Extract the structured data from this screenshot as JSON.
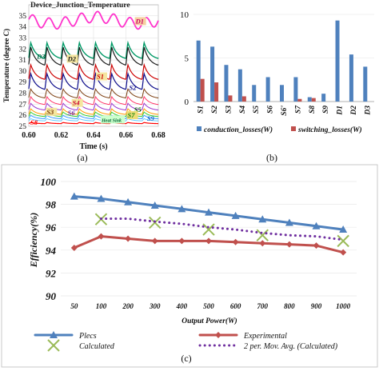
{
  "chart_data": [
    {
      "panel": "a",
      "type": "line",
      "title": "Device_Junction_Temperature",
      "xlabel": "Time (s)",
      "ylabel": "Temperature (degree C)",
      "xlim": [
        0.6,
        0.68
      ],
      "ylim": [
        25,
        36
      ],
      "x_ticks": [
        "0.60",
        "0.62",
        "0.64",
        "0.66",
        "0.68"
      ],
      "y_ticks": [
        "25",
        "26",
        "27",
        "28",
        "29",
        "30",
        "31",
        "32",
        "33",
        "34",
        "35"
      ],
      "caption": "(a)",
      "series": [
        {
          "name": "D1",
          "color": "#ff33cc",
          "base": 34.6,
          "amp": 0.9,
          "width": 1.8
        },
        {
          "name": "D3",
          "color": "#009966",
          "base": 31.2,
          "amp": 1.4,
          "width": 1.4
        },
        {
          "name": "D2",
          "color": "#1a1a1a",
          "base": 30.6,
          "amp": 1.6,
          "width": 1.2
        },
        {
          "name": "S1",
          "color": "#cc0000",
          "base": 29.3,
          "amp": 1.3,
          "width": 1.2
        },
        {
          "name": "S2",
          "color": "#0a0a8a",
          "base": 28.4,
          "amp": 1.4,
          "width": 1.2
        },
        {
          "name": "S3",
          "color": "#7a3b0c",
          "base": 27.6,
          "amp": 0.8,
          "width": 1.0
        },
        {
          "name": "S4",
          "color": "#ff3366",
          "base": 27.0,
          "amp": 0.7,
          "width": 1.0
        },
        {
          "name": "S6",
          "color": "#9933cc",
          "base": 26.5,
          "amp": 0.6,
          "width": 1.0
        },
        {
          "name": "S5",
          "color": "#ff9900",
          "base": 26.1,
          "amp": 0.5,
          "width": 1.0
        },
        {
          "name": "S7",
          "color": "#33cc33",
          "base": 25.9,
          "amp": 0.4,
          "width": 1.0
        },
        {
          "name": "S9",
          "color": "#3399ff",
          "base": 25.7,
          "amp": 0.3,
          "width": 1.0
        },
        {
          "name": "Heat Sink",
          "color": "#66ccff",
          "base": 25.5,
          "amp": 0.2,
          "width": 1.0
        },
        {
          "name": "S8",
          "color": "#ff0000",
          "base": 25.25,
          "amp": 0.1,
          "width": 1.2
        }
      ],
      "labels": [
        {
          "text": "D1",
          "x": 0.666,
          "y": 34.3,
          "bg": "#f5d0a0",
          "color": "#cc0066"
        },
        {
          "text": "D3",
          "x": 0.605,
          "y": 31.1,
          "bg": "",
          "color": "#006644"
        },
        {
          "text": "D2",
          "x": 0.624,
          "y": 30.9,
          "bg": "#f5e6a0",
          "color": "#1a1a1a"
        },
        {
          "text": "S1",
          "x": 0.642,
          "y": 29.3,
          "bg": "#f5e6a0",
          "color": "#cc0000"
        },
        {
          "text": "S2",
          "x": 0.662,
          "y": 28.3,
          "bg": "",
          "color": "#0a0a8a"
        },
        {
          "text": "S4",
          "x": 0.627,
          "y": 26.9,
          "bg": "#f5e6a0",
          "color": "#cc0033"
        },
        {
          "text": "S3",
          "x": 0.611,
          "y": 26.1,
          "bg": "#f5e6a0",
          "color": "#7a3b0c"
        },
        {
          "text": "S6",
          "x": 0.624,
          "y": 26.0,
          "bg": "",
          "color": "#6622aa"
        },
        {
          "text": "S5",
          "x": 0.665,
          "y": 26.3,
          "bg": "",
          "color": "#006600"
        },
        {
          "text": "S7",
          "x": 0.661,
          "y": 25.8,
          "bg": "#eedd77",
          "color": "#118811"
        },
        {
          "text": "S9",
          "x": 0.673,
          "y": 25.5,
          "bg": "",
          "color": "#1166cc"
        },
        {
          "text": "Heat Sink",
          "x": 0.645,
          "y": 25.4,
          "bg": "#ccffcc",
          "color": "#006633"
        },
        {
          "text": "S8",
          "x": 0.601,
          "y": 25.15,
          "bg": "",
          "color": "#ff0000"
        }
      ]
    },
    {
      "panel": "b",
      "type": "bar",
      "categories": [
        "S1",
        "S2",
        "S3",
        "S4",
        "S5",
        "S6",
        "S6'",
        "S7",
        "S8",
        "S9",
        "D1",
        "D2",
        "D3"
      ],
      "ylim": [
        0,
        10
      ],
      "y_ticks": [
        "0",
        "5",
        "10"
      ],
      "caption": "(b)",
      "series": [
        {
          "name": "conduction_losses(W)",
          "color": "#4f81bd",
          "values": [
            7.0,
            6.3,
            4.2,
            3.7,
            1.9,
            2.8,
            1.9,
            2.8,
            0.5,
            0.9,
            9.3,
            5.4,
            4.0
          ]
        },
        {
          "name": "switching_losses(W)",
          "color": "#c0504d",
          "values": [
            2.6,
            2.2,
            0.7,
            0.6,
            0,
            0,
            0,
            0.3,
            0.4,
            0,
            0,
            0,
            0
          ]
        }
      ]
    },
    {
      "panel": "c",
      "type": "line",
      "xlabel": "Output Power(W)",
      "ylabel": "Efficiency(%)",
      "categories": [
        "50",
        "100",
        "200",
        "300",
        "400",
        "500",
        "600",
        "700",
        "800",
        "900",
        "1000"
      ],
      "ylim": [
        90,
        100
      ],
      "y_ticks": [
        "90",
        "92",
        "94",
        "96",
        "98",
        "100"
      ],
      "caption": "(c)",
      "series": [
        {
          "name": "Plecs",
          "color": "#4f81bd",
          "marker": "triangle",
          "values": [
            98.7,
            98.5,
            98.2,
            97.9,
            97.6,
            97.3,
            97.0,
            96.7,
            96.4,
            96.1,
            95.8
          ]
        },
        {
          "name": "Experimental",
          "color": "#c0504d",
          "marker": "diamond",
          "values": [
            94.2,
            95.2,
            95.0,
            94.8,
            94.8,
            94.8,
            94.7,
            94.6,
            94.5,
            94.4,
            93.8
          ]
        },
        {
          "name": "Calculated",
          "color": "#9bbb59",
          "marker": "x",
          "values": [
            null,
            96.7,
            null,
            96.4,
            null,
            95.8,
            null,
            95.3,
            null,
            null,
            94.8
          ]
        },
        {
          "name": "2 per. Mov. Avg. (Calculated)",
          "color": "#7030a0",
          "style": "dotted",
          "values": [
            null,
            96.75,
            96.75,
            96.5,
            96.3,
            96.0,
            95.8,
            95.5,
            95.3,
            95.2,
            94.9
          ]
        }
      ]
    }
  ]
}
